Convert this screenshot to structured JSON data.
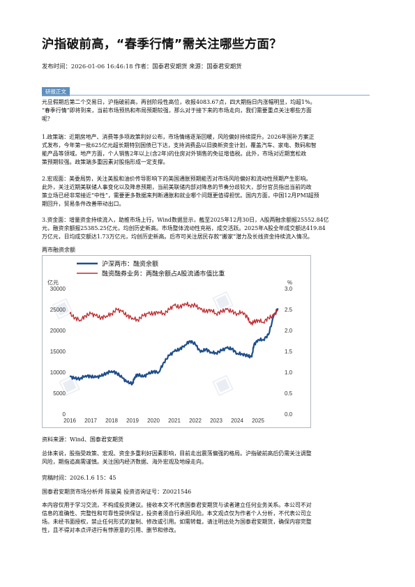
{
  "title": "沪指破前高，“春季行情”需关注哪些方面？",
  "meta": "发布时间：2026-01-06 16:46:18 作者：国泰君安期货 来源：国泰君安期货",
  "section_tag": "研报正文",
  "paragraphs": [
    [
      "元旦假期后第二个交易日，沪指破前高，再创阶段性高位，收报4083.67点，四大期指日内涨幅明显，均超1%。",
      "“春季行情”即将到来，当前市场预热和布局预期较强，那么对于接下来的市场走向，我们需要重点关注哪些方面",
      "呢？"
    ],
    [
      "1.政策端：近期房地产、消费等多项政策利好公布，市场情绪逐渐回暖，风险偏好持续提升。2026年国补方案正",
      "式发布，今年第一批625亿元超长期特别国债已下达，支持消费品以旧换新资金计划，覆盖汽车、家电、数码和智",
      "能产品等领域。地产方面，个人销售2年以上(含2年)的住房对外销售的免征增值税。此外，市场对近期宽松政",
      "策预期较强。政策端多重因素对股指形成一定支撑。"
    ],
    [
      "2.宏观面：美委局势，关注美股和油价传导影响下的美国通胀预期能否对市场风险偏好和流动性预期产生影响。",
      "此外，关注近期美联储人事变化以及降息预期，当前美联储内部对降息的节奏分歧较大，部分官员指出当前的政",
      "策立场已经非常接近“中性”，需要更多数据来判断通胀和就业哪个问题更值得担忧。国内方面，中国12月PMI超预",
      "期回升，贸易条件改善带动出口。"
    ],
    [
      "3.资金面：增量资金持续流入，助推市场上行。Wind数据显示，截至2025年12月30日，A股两融余额报25552.84亿",
      "元，融资余额报25385.25亿元，均创历史新高。市场整体流动性充裕，成交活跃。2025年A股全年成交额达419.84",
      "万亿元，日均成交额达1.73万亿元，均创历史新高。后市可关注居民存款“搬家”潜力及长线资金持续流入情况。"
    ]
  ],
  "chart_caption": "两市融资余额",
  "chart_data": {
    "type": "line",
    "left_unit": "亿元",
    "right_unit": "%",
    "x_ticks": [
      "2016",
      "2017",
      "2018",
      "2019",
      "2020",
      "2021",
      "2022",
      "2023",
      "2024",
      "2025"
    ],
    "y_left_ticks": [
      "0",
      "5000",
      "10000",
      "15000",
      "20000",
      "25000",
      "30000"
    ],
    "y_right_ticks": [
      "0.0",
      "0.5",
      "1.0",
      "1.5",
      "2.0",
      "2.5",
      "3.0"
    ],
    "ylim_left": [
      0,
      30000
    ],
    "ylim_right": [
      0,
      3.0
    ],
    "xlim": [
      2016.0,
      2026.0
    ],
    "grid": false,
    "legend_position": "top-left",
    "series": [
      {
        "name": "沪深两市：融资余额",
        "axis": "left",
        "color": "#1f4e8c",
        "x": [
          2016.0,
          2016.25,
          2016.5,
          2016.75,
          2017.0,
          2017.25,
          2017.5,
          2017.75,
          2018.0,
          2018.25,
          2018.5,
          2018.75,
          2019.0,
          2019.1,
          2019.25,
          2019.5,
          2019.75,
          2020.0,
          2020.25,
          2020.5,
          2020.75,
          2021.0,
          2021.25,
          2021.5,
          2021.75,
          2022.0,
          2022.25,
          2022.5,
          2022.75,
          2023.0,
          2023.25,
          2023.5,
          2023.75,
          2024.0,
          2024.25,
          2024.5,
          2024.7,
          2024.8,
          2025.0,
          2025.25,
          2025.5,
          2025.75,
          2025.95
        ],
        "y": [
          9000,
          8500,
          8500,
          9200,
          9000,
          8800,
          9100,
          9800,
          10300,
          9800,
          8700,
          7600,
          7300,
          8800,
          9500,
          8900,
          9600,
          10200,
          10000,
          12400,
          14000,
          15000,
          15500,
          16500,
          17500,
          16700,
          14800,
          15500,
          14800,
          14600,
          15200,
          15800,
          15600,
          14500,
          14400,
          13900,
          13700,
          16500,
          17800,
          17800,
          19000,
          23500,
          25300
        ]
      },
      {
        "name": "融资融券业务：两融余额占A股流通市值比重",
        "axis": "right",
        "color": "#c0282c",
        "x": [
          2016.0,
          2016.25,
          2016.5,
          2016.75,
          2017.0,
          2017.25,
          2017.5,
          2017.75,
          2018.0,
          2018.25,
          2018.5,
          2018.75,
          2019.0,
          2019.25,
          2019.5,
          2019.75,
          2020.0,
          2020.25,
          2020.5,
          2020.75,
          2021.0,
          2021.25,
          2021.5,
          2021.75,
          2022.0,
          2022.25,
          2022.5,
          2022.75,
          2023.0,
          2023.25,
          2023.5,
          2023.75,
          2024.0,
          2024.25,
          2024.5,
          2024.65,
          2024.8,
          2025.0,
          2025.25,
          2025.5,
          2025.75,
          2025.95
        ],
        "y": [
          2.4,
          2.3,
          2.25,
          2.35,
          2.4,
          2.35,
          2.3,
          2.35,
          2.4,
          2.5,
          2.45,
          2.35,
          2.3,
          2.25,
          2.35,
          2.4,
          2.4,
          2.45,
          2.4,
          2.5,
          2.6,
          2.55,
          2.65,
          2.6,
          2.6,
          2.5,
          2.45,
          2.5,
          2.4,
          2.45,
          2.5,
          2.45,
          2.4,
          2.45,
          2.3,
          2.15,
          2.2,
          2.25,
          2.2,
          2.3,
          2.35,
          2.5
        ]
      }
    ]
  },
  "source": "资料来源：Wind、国泰君安期货",
  "summary": [
    "总体来说，股指受政策、宏观、资金多重利好因素影响，目前走出震荡偏强的格局。沪指破前高后仍需关注调整",
    "风险，期指追高需谨慎。关注国内经济数据、海外宏观及地缘走向。"
  ],
  "finish_time": "完稿时间：2026.1.6  15：45",
  "author": "国泰君安期货市场分析师 陈骏昊 投资咨询证号：Z0021546",
  "disclaimer": [
    "本内容仅用于学习交流，不构成投资建议。接收本文不代表国泰君安期货与读者建立任何业务关系。本公司不对",
    "信息的准确性、完整性和可靠性提供保证，投资者须自行承担风险。本文观点仅为作者个人分析，不代表公司立",
    "场。未经书面授权，禁止任何形式的复制、修改或引用。如需转载，请注明出处为国泰君安期货，确保内容完整",
    "性，且不得对本点评进行有悖原意的引用、删节和修改。"
  ]
}
